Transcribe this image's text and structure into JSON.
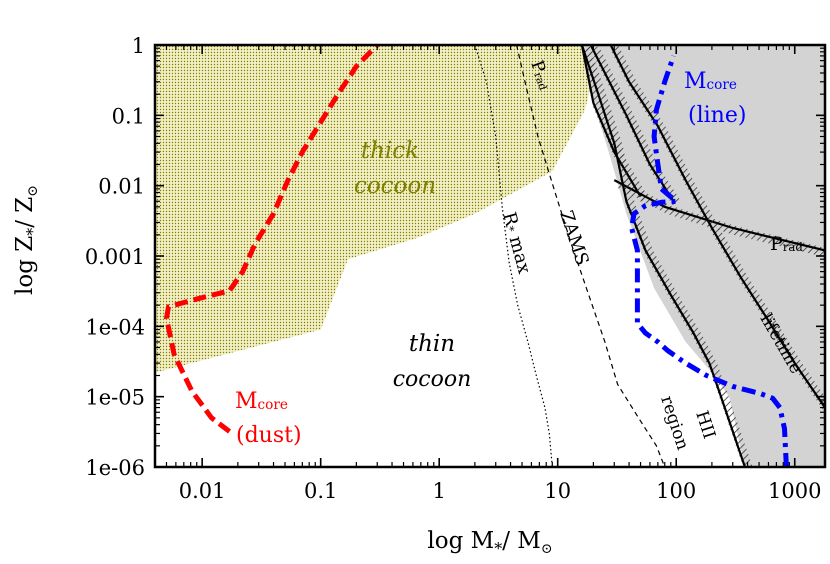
{
  "chart_data": {
    "type": "region-diagram",
    "xlabel": "log M",
    "xlabel_sub": "*",
    "xlabel_rest": "/ M",
    "xlabel_sun": "⊙",
    "ylabel": "log Z",
    "ylabel_sub": "*",
    "ylabel_rest": "/ Z",
    "ylabel_sun": "⊙",
    "x_scale": "log",
    "y_scale": "log",
    "xlim": [
      0.004,
      1800
    ],
    "ylim": [
      1e-06,
      1
    ],
    "x_ticks": [
      {
        "value": 0.01,
        "label": "0.01"
      },
      {
        "value": 0.1,
        "label": "0.1"
      },
      {
        "value": 1,
        "label": "1"
      },
      {
        "value": 10,
        "label": "10"
      },
      {
        "value": 100,
        "label": "100"
      },
      {
        "value": 1000,
        "label": "1000"
      }
    ],
    "y_ticks": [
      {
        "value": 1e-06,
        "label": "1e-06"
      },
      {
        "value": 1e-05,
        "label": "1e-05"
      },
      {
        "value": 0.0001,
        "label": "1e-04"
      },
      {
        "value": 0.001,
        "label": "0.001"
      },
      {
        "value": 0.01,
        "label": "0.01"
      },
      {
        "value": 0.1,
        "label": "0.1"
      },
      {
        "value": 1,
        "label": "1"
      }
    ],
    "regions": {
      "thick_cocoon": {
        "label_line1": "thick",
        "label_line2": "cocoon",
        "color": "#808000",
        "boundary": [
          [
            0.004,
            2.2e-05
          ],
          [
            0.1,
            9e-05
          ],
          [
            0.17,
            0.0009
          ],
          [
            0.65,
            0.0018
          ],
          [
            2.0,
            0.004
          ],
          [
            9.0,
            0.016
          ],
          [
            17.0,
            0.12
          ],
          [
            22.0,
            0.7
          ],
          [
            25.0,
            1.0
          ],
          [
            0.004,
            1.0
          ]
        ]
      },
      "thin_cocoon": {
        "label_line1": "thin",
        "label_line2": "cocoon"
      },
      "gray_forbidden": {
        "color": "#d3d3d3",
        "boundary": [
          [
            16.0,
            1.0
          ],
          [
            20.0,
            0.15
          ],
          [
            27.0,
            0.03
          ],
          [
            38.0,
            0.004
          ],
          [
            65.0,
            0.00035
          ],
          [
            120.0,
            6e-05
          ],
          [
            200.0,
            2.2e-05
          ],
          [
            280.0,
            1e-05
          ],
          [
            380.0,
            1e-06
          ],
          [
            1800.0,
            1e-06
          ],
          [
            1800.0,
            1.0
          ]
        ]
      }
    },
    "series": [
      {
        "name": "Mcore (dust)",
        "label_main": "M",
        "label_sub": "core",
        "label_extra": "(dust)",
        "color": "#ff0000",
        "style": "dashed",
        "x": [
          0.017,
          0.012,
          0.0082,
          0.0058,
          0.005,
          0.0052,
          0.0095,
          0.017,
          0.022,
          0.028,
          0.04,
          0.053,
          0.07,
          0.1,
          0.14,
          0.2,
          0.3
        ],
        "y": [
          3.2e-06,
          5e-06,
          1.2e-05,
          4e-05,
          0.00013,
          0.00019,
          0.00025,
          0.00032,
          0.0006,
          0.0015,
          0.004,
          0.012,
          0.03,
          0.08,
          0.2,
          0.5,
          1.0
        ]
      },
      {
        "name": "Mcore (line)",
        "label_main": "M",
        "label_sub": "core",
        "label_extra": "(line)",
        "color": "#0000ff",
        "style": "dashdot",
        "x": [
          850,
          820,
          750,
          650,
          520,
          300,
          180,
          120,
          85,
          70,
          55,
          47,
          47,
          47,
          42,
          44,
          55,
          75,
          100,
          75,
          70,
          65,
          68,
          80,
          95
        ],
        "y": [
          1e-06,
          3.5e-06,
          7e-06,
          9.5e-06,
          1.1e-05,
          1.4e-05,
          2e-05,
          3e-05,
          4.5e-05,
          6e-05,
          8e-05,
          0.00011,
          0.0004,
          0.0012,
          0.0025,
          0.004,
          0.0052,
          0.0058,
          0.006,
          0.009,
          0.02,
          0.05,
          0.12,
          0.3,
          0.7
        ]
      },
      {
        "name": "R* max",
        "label": "R",
        "label_sub": "*",
        "label_rest": " max",
        "color": "#000000",
        "style": "dotted",
        "x": [
          2.0,
          2.5,
          3.0,
          3.4,
          3.9,
          4.6,
          5.6,
          6.6,
          7.8,
          8.5,
          9.0
        ],
        "y": [
          1.0,
          0.3,
          0.05,
          0.005,
          0.0008,
          0.0002,
          6e-05,
          2e-05,
          7e-06,
          3e-06,
          1e-06
        ]
      },
      {
        "name": "ZAMS",
        "label": "ZAMS",
        "color": "#000000",
        "style": "dashed",
        "x": [
          4.5,
          5.3,
          6.8,
          9.5,
          13.0,
          18.0,
          25.0,
          32.0,
          48.0,
          68.0,
          80.0
        ],
        "y": [
          1.0,
          0.3,
          0.05,
          0.008,
          0.0015,
          0.0003,
          6e-05,
          1.5e-05,
          5e-06,
          2e-06,
          1e-06
        ]
      }
    ],
    "boundaries": [
      {
        "name": "Prad (upper)",
        "label": "P",
        "label_sub": "rad",
        "x": [
          16,
          17,
          20,
          30,
          50
        ],
        "y": [
          1.0,
          0.6,
          0.15,
          0.03,
          0.007
        ]
      },
      {
        "name": "Prad (lower)",
        "label": "P",
        "label_sub": "rad",
        "x": [
          30,
          80,
          300,
          1800
        ],
        "y": [
          0.012,
          0.005,
          0.0025,
          0.0012
        ]
      },
      {
        "name": "HII region",
        "label_line1": "HII",
        "label_line2": "region",
        "x": [
          16,
          22,
          30,
          38,
          55,
          90,
          140,
          190,
          230,
          380
        ],
        "y": [
          1.0,
          0.2,
          0.04,
          0.006,
          0.0012,
          0.00028,
          8e-05,
          3e-05,
          1.2e-05,
          1e-06
        ]
      },
      {
        "name": "lifetime",
        "label": "lifetime",
        "x": [
          28,
          40,
          70,
          120,
          200,
          350,
          600,
          1000,
          1800
        ],
        "y": [
          1.0,
          0.3,
          0.07,
          0.012,
          0.0025,
          0.0005,
          0.00012,
          3e-05,
          7e-06
        ]
      },
      {
        "name": "extra upper",
        "x": [
          19,
          25,
          38,
          60,
          95
        ],
        "y": [
          1.0,
          0.4,
          0.1,
          0.02,
          0.006
        ]
      }
    ]
  }
}
